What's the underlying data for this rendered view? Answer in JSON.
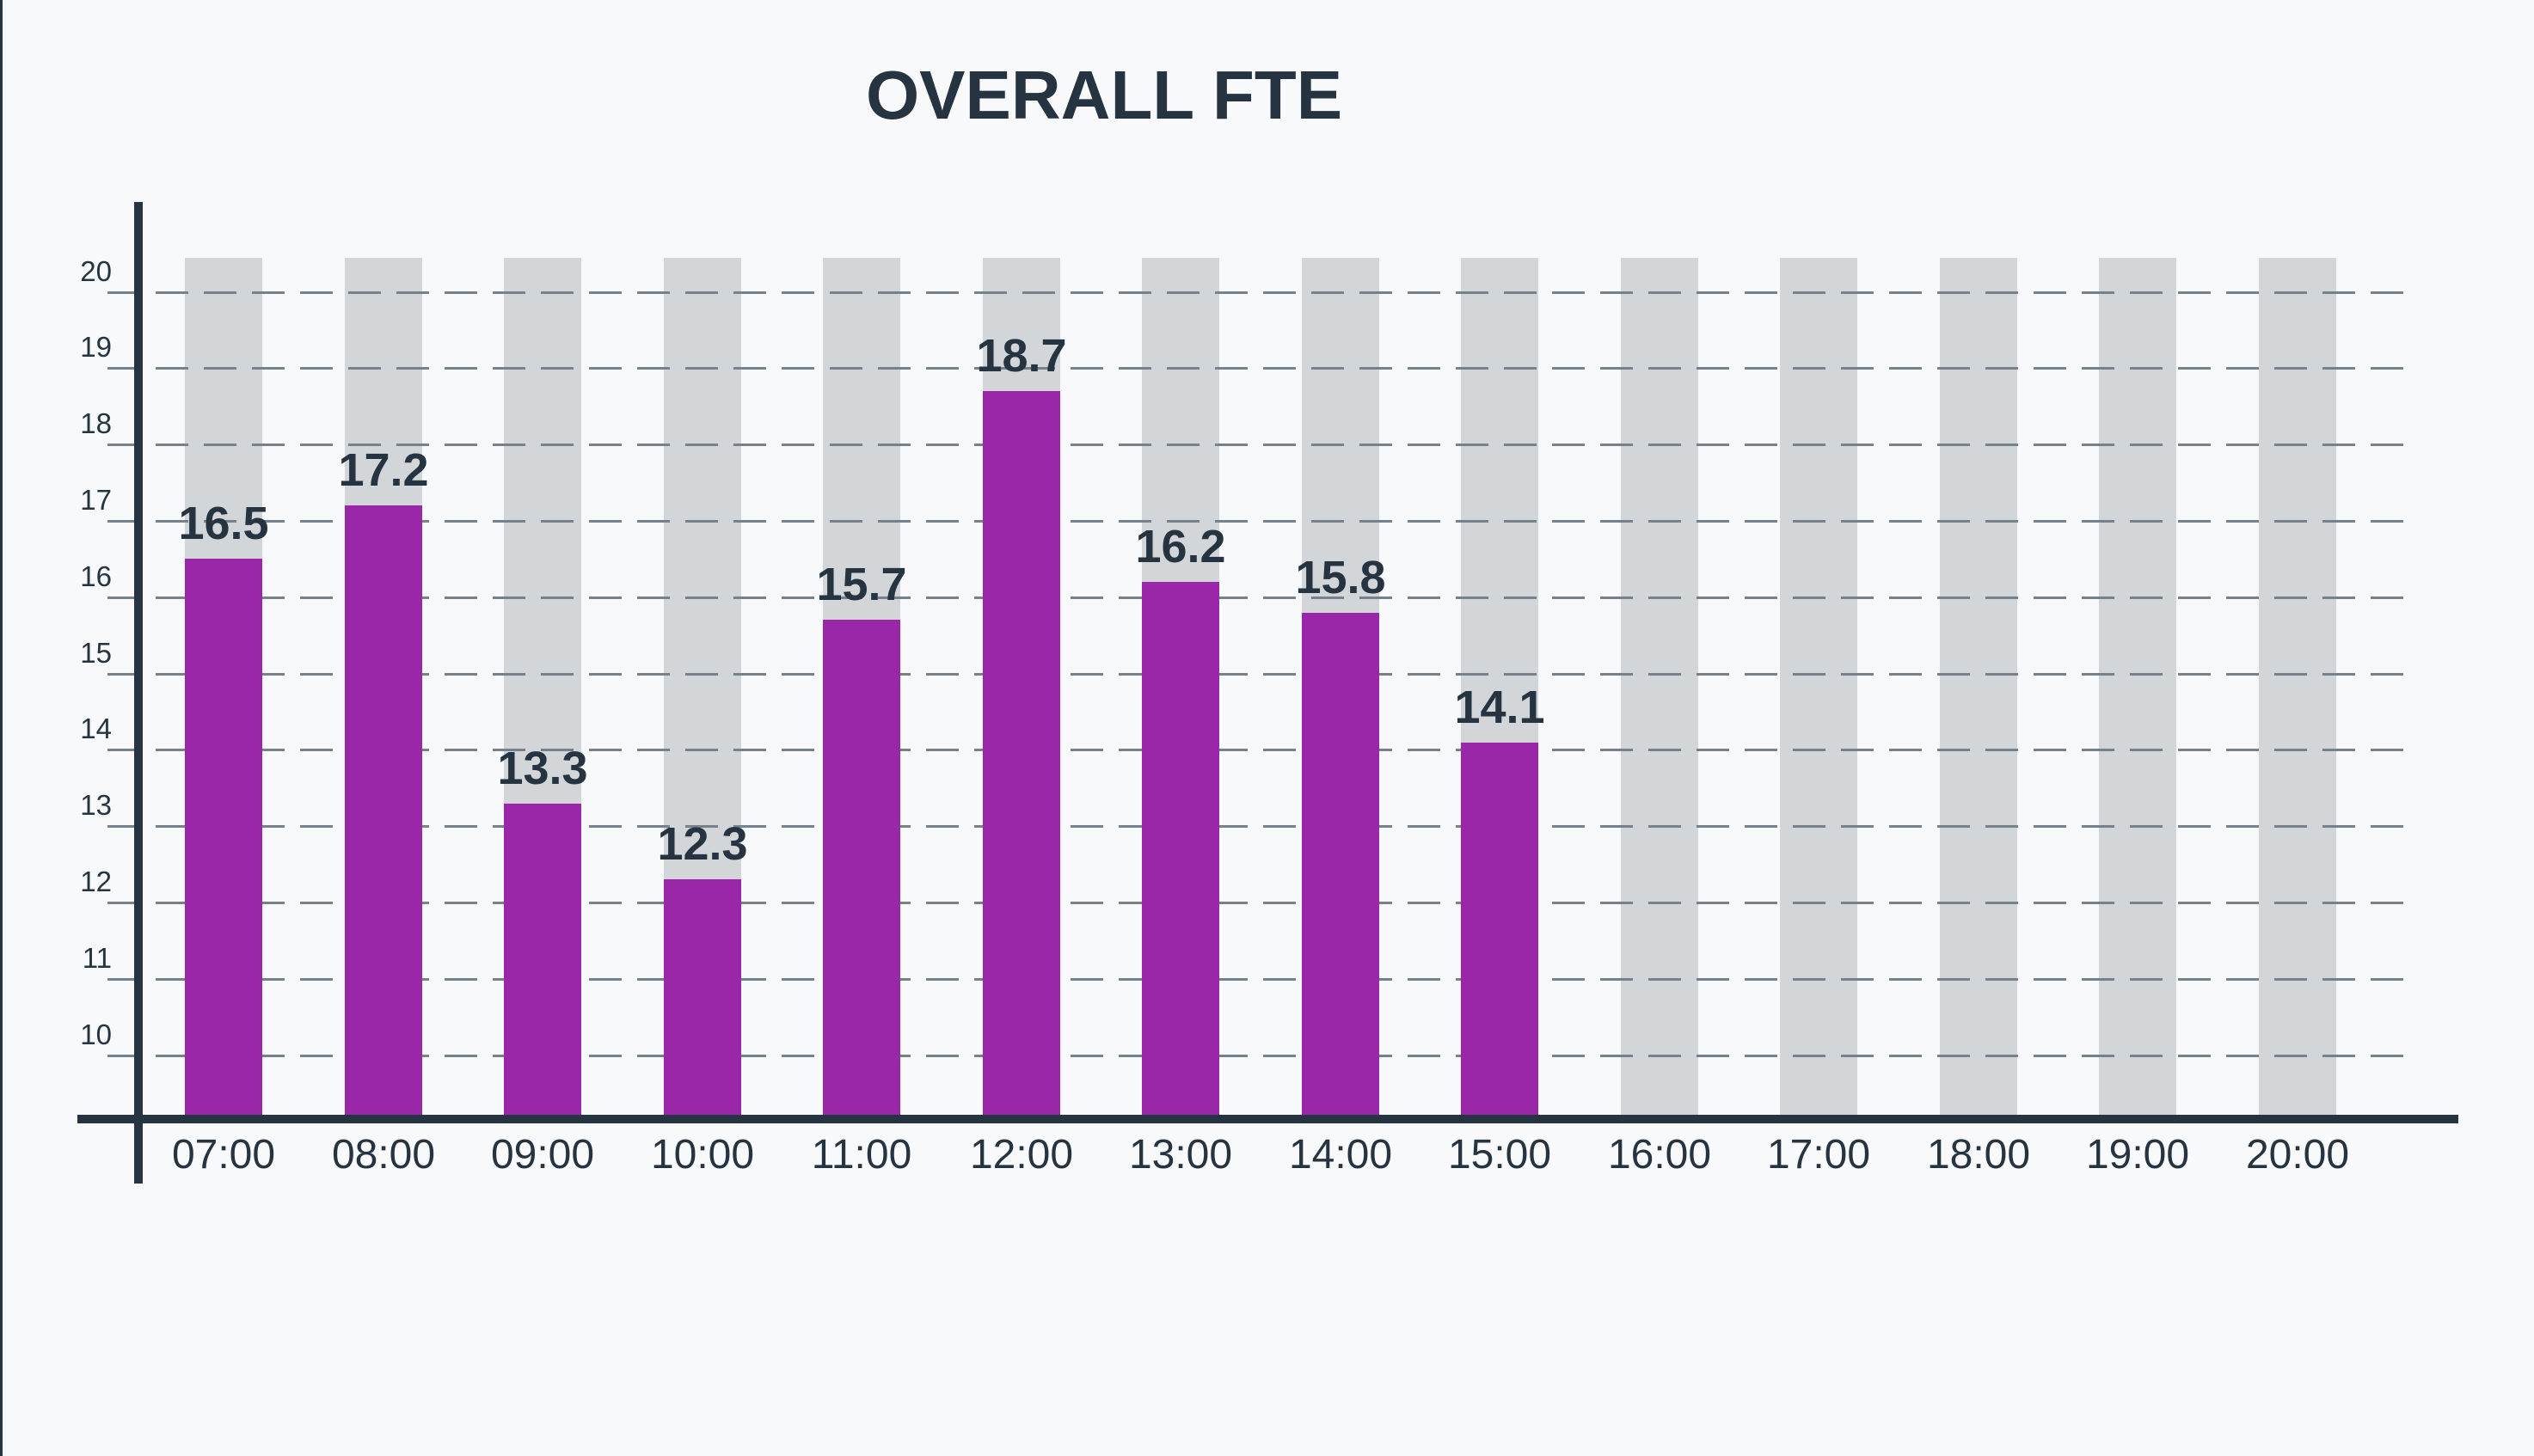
{
  "chart_data": {
    "type": "bar",
    "title": "OVERALL FTE",
    "categories": [
      "07:00",
      "08:00",
      "09:00",
      "10:00",
      "11:00",
      "12:00",
      "13:00",
      "14:00",
      "15:00",
      "16:00",
      "17:00",
      "18:00",
      "19:00",
      "20:00"
    ],
    "values": [
      16.5,
      17.2,
      13.3,
      12.3,
      15.7,
      18.7,
      16.2,
      15.8,
      14.1,
      null,
      null,
      null,
      null,
      null
    ],
    "value_labels": [
      "16.5",
      "17.2",
      "13.3",
      "12.3",
      "15.7",
      "18.7",
      "16.2",
      "15.8",
      "14.1",
      "",
      "",
      "",
      "",
      ""
    ],
    "y_ticks": [
      20,
      19,
      18,
      17,
      16,
      15,
      14,
      13,
      12,
      11,
      10
    ],
    "ylim": [
      9.22,
      20.45
    ],
    "background_bar_top": 20.45,
    "xlabel": "",
    "ylabel": "",
    "legend": "none",
    "grid": "dashed-horizontal",
    "colors": {
      "bar": "#9927A7",
      "background_bar": "#D3D6D9",
      "axis": "#263340",
      "text": "#263340",
      "gridline": "#76818B",
      "background": "#F8F9FA"
    }
  }
}
